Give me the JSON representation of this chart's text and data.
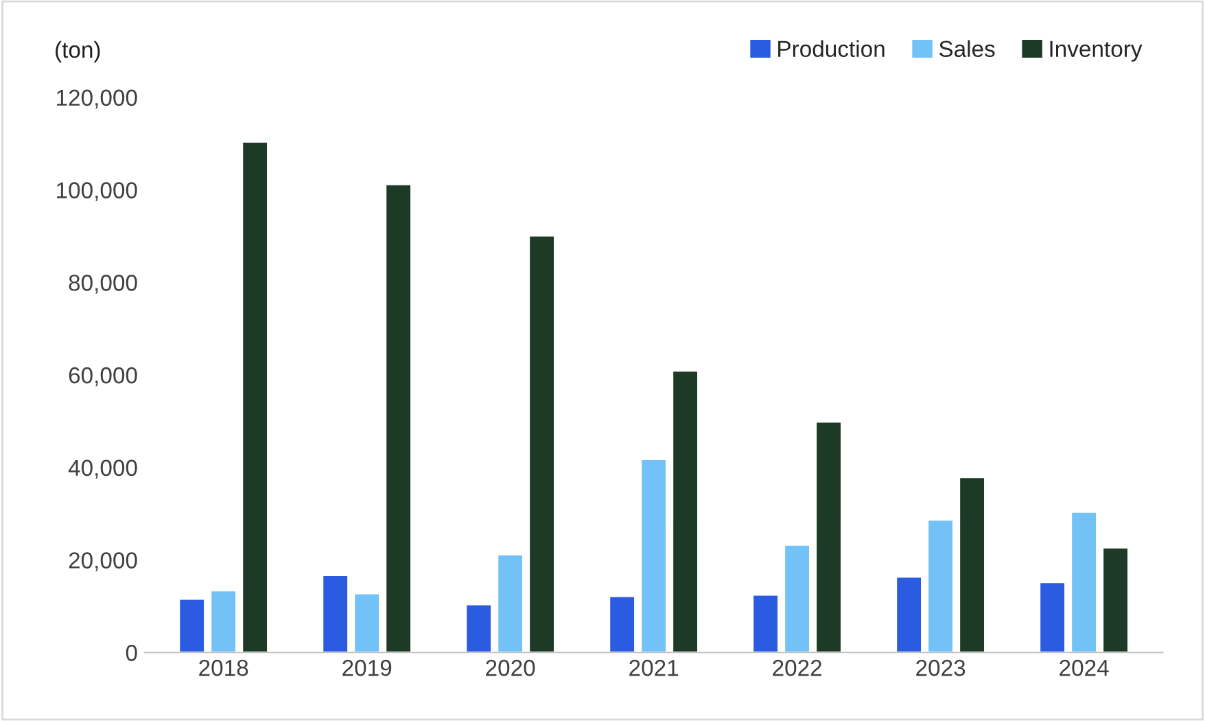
{
  "chart_data": {
    "type": "bar",
    "ylabel": "(ton)",
    "categories": [
      "2018",
      "2019",
      "2020",
      "2021",
      "2022",
      "2023",
      "2024"
    ],
    "series": [
      {
        "name": "Production",
        "color": "#2b5be0",
        "values": [
          11600,
          16700,
          10400,
          12200,
          12500,
          16400,
          15200
        ]
      },
      {
        "name": "Sales",
        "color": "#72c2f8",
        "values": [
          13400,
          12800,
          21200,
          41800,
          23300,
          28700,
          30400
        ]
      },
      {
        "name": "Inventory",
        "color": "#1c3a26",
        "values": [
          110400,
          101200,
          90100,
          60900,
          49900,
          37900,
          22700
        ]
      }
    ],
    "ylim": [
      0,
      120000
    ],
    "yticks": [
      {
        "value": 0,
        "label": "0"
      },
      {
        "value": 20000,
        "label": "20,000"
      },
      {
        "value": 40000,
        "label": "40,000"
      },
      {
        "value": 60000,
        "label": "60,000"
      },
      {
        "value": 80000,
        "label": "80,000"
      },
      {
        "value": 100000,
        "label": "100,000"
      },
      {
        "value": 120000,
        "label": "120,000"
      }
    ],
    "grid": false,
    "legend": "top right"
  }
}
